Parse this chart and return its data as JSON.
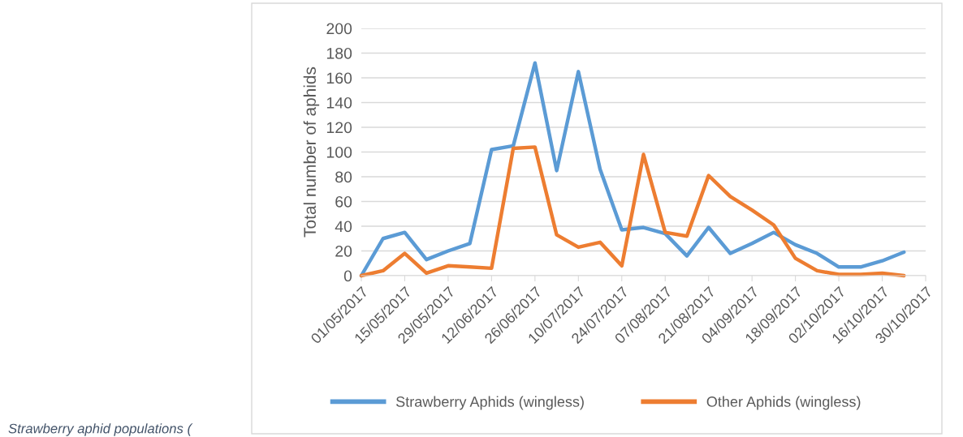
{
  "chart_data": {
    "type": "line",
    "ylabel": "Total number of aphids",
    "x": [
      "2017-05-01",
      "2017-05-08",
      "2017-05-15",
      "2017-05-22",
      "2017-05-29",
      "2017-06-05",
      "2017-06-12",
      "2017-06-19",
      "2017-06-26",
      "2017-07-03",
      "2017-07-10",
      "2017-07-17",
      "2017-07-24",
      "2017-07-31",
      "2017-08-07",
      "2017-08-14",
      "2017-08-21",
      "2017-08-28",
      "2017-09-04",
      "2017-09-11",
      "2017-09-18",
      "2017-09-25",
      "2017-10-02",
      "2017-10-09",
      "2017-10-16",
      "2017-10-23"
    ],
    "series": [
      {
        "name": "Strawberry Aphids (wingless)",
        "color": "#5b9bd5",
        "values": [
          0,
          30,
          35,
          13,
          20,
          26,
          102,
          105,
          172,
          85,
          165,
          86,
          37,
          39,
          34,
          16,
          39,
          18,
          26,
          35,
          25,
          18,
          7,
          7,
          12,
          19
        ]
      },
      {
        "name": "Other Aphids (wingless)",
        "color": "#ed7d31",
        "values": [
          0,
          4,
          18,
          2,
          8,
          7,
          6,
          103,
          104,
          33,
          23,
          27,
          8,
          98,
          35,
          32,
          81,
          64,
          53,
          41,
          14,
          4,
          1,
          1,
          2,
          0
        ]
      }
    ],
    "xlim": [
      "2017-05-01",
      "2017-10-30"
    ],
    "xticks": [
      {
        "value": "2017-05-01",
        "label": "01/05/2017"
      },
      {
        "value": "2017-05-15",
        "label": "15/05/2017"
      },
      {
        "value": "2017-05-29",
        "label": "29/05/2017"
      },
      {
        "value": "2017-06-12",
        "label": "12/06/2017"
      },
      {
        "value": "2017-06-26",
        "label": "26/06/2017"
      },
      {
        "value": "2017-07-10",
        "label": "10/07/2017"
      },
      {
        "value": "2017-07-24",
        "label": "24/07/2017"
      },
      {
        "value": "2017-08-07",
        "label": "07/08/2017"
      },
      {
        "value": "2017-08-21",
        "label": "21/08/2017"
      },
      {
        "value": "2017-09-04",
        "label": "04/09/2017"
      },
      {
        "value": "2017-09-18",
        "label": "18/09/2017"
      },
      {
        "value": "2017-10-02",
        "label": "02/10/2017"
      },
      {
        "value": "2017-10-16",
        "label": "16/10/2017"
      },
      {
        "value": "2017-10-30",
        "label": "30/10/2017"
      }
    ],
    "ylim": [
      0,
      200
    ],
    "yticks": [
      0,
      20,
      40,
      60,
      80,
      100,
      120,
      140,
      160,
      180,
      200
    ],
    "grid": "y",
    "legend": "bottom",
    "marker": "none",
    "line_style": "solid",
    "annotations": [
      "Strawberry aphid populations ("
    ]
  }
}
